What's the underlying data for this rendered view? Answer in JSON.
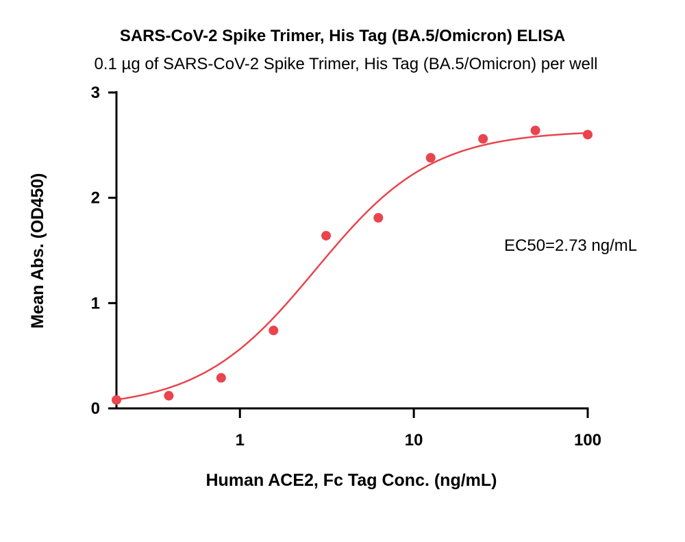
{
  "chart_data": {
    "type": "scatter",
    "title": "SARS-CoV-2 Spike Trimer, His Tag (BA.5/Omicron) ELISA",
    "subtitle": "0.1 µg of SARS-CoV-2 Spike Trimer, His Tag (BA.5/Omicron) per well",
    "xlabel": "Human ACE2, Fc Tag Conc. (ng/mL)",
    "ylabel": "Mean Abs. (OD450)",
    "x_scale": "log",
    "xlim": [
      0.195,
      100
    ],
    "ylim": [
      0,
      3
    ],
    "x_ticks": [
      1,
      10,
      100
    ],
    "x_tick_labels": [
      "1",
      "10",
      "100"
    ],
    "y_ticks": [
      0,
      1,
      2,
      3
    ],
    "y_tick_labels": [
      "0",
      "1",
      "2",
      "3"
    ],
    "grid": false,
    "annotation": "EC50=2.73 ng/mL",
    "color": "#e8454d",
    "series": [
      {
        "x": [
          0.195,
          0.39,
          0.78,
          1.56,
          3.13,
          6.25,
          12.5,
          25,
          50,
          100
        ],
        "y": [
          0.08,
          0.12,
          0.29,
          0.74,
          1.64,
          1.81,
          2.38,
          2.56,
          2.64,
          2.6
        ]
      }
    ],
    "fit": {
      "model": "4PL",
      "bottom": 0.0,
      "top": 2.64,
      "ec50": 2.73,
      "hill": 1.3
    }
  }
}
